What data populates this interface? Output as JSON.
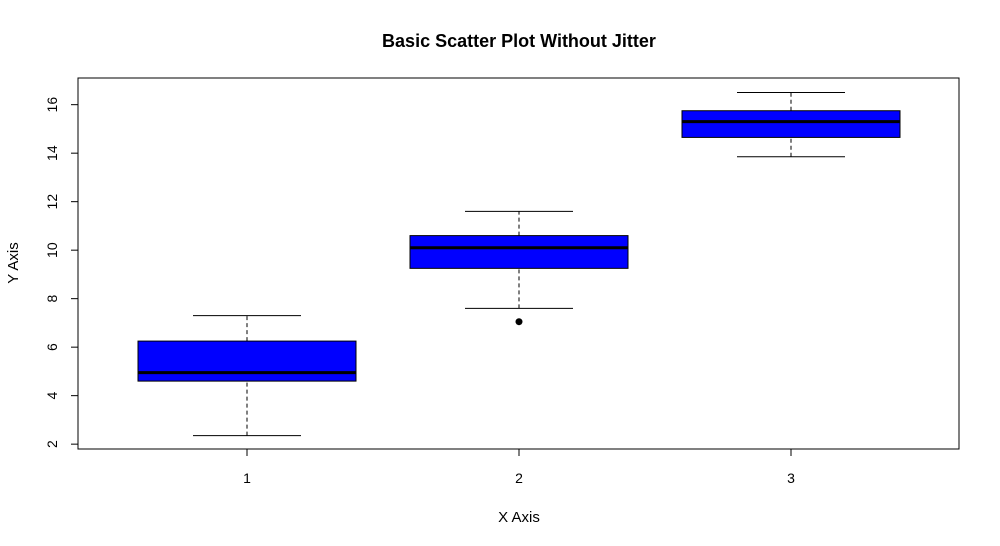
{
  "chart_data": {
    "type": "boxplot",
    "title": "Basic Scatter Plot Without Jitter",
    "xlabel": "X Axis",
    "ylabel": "Y Axis",
    "categories": [
      "1",
      "2",
      "3"
    ],
    "yticks": [
      2,
      4,
      6,
      8,
      10,
      12,
      14,
      16
    ],
    "ylim": [
      1.8,
      17.1
    ],
    "box_color": "#0000ff",
    "boxes": [
      {
        "category": "1",
        "whisker_low": 2.35,
        "q1": 4.6,
        "median": 4.95,
        "q3": 6.25,
        "whisker_high": 7.3,
        "outliers": []
      },
      {
        "category": "2",
        "whisker_low": 7.6,
        "q1": 9.25,
        "median": 10.1,
        "q3": 10.6,
        "whisker_high": 11.6,
        "outliers": [
          7.05
        ]
      },
      {
        "category": "3",
        "whisker_low": 13.85,
        "q1": 14.65,
        "median": 15.3,
        "q3": 15.75,
        "whisker_high": 16.5,
        "outliers": []
      }
    ]
  }
}
